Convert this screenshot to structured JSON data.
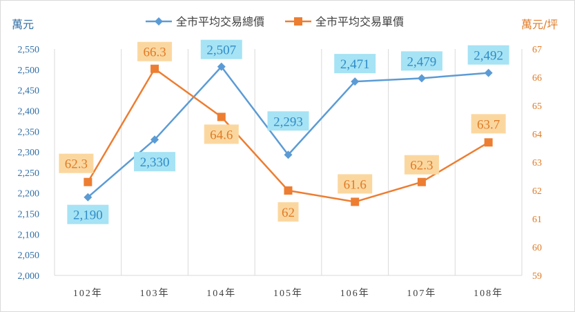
{
  "chart_data": {
    "type": "line",
    "categories": [
      "102年",
      "103年",
      "104年",
      "105年",
      "106年",
      "107年",
      "108年"
    ],
    "series": [
      {
        "name": "全市平均交易總價",
        "axis": "left",
        "color": "#5b9bd5",
        "label_bg": "#a6e3f4",
        "label_color": "#2f8cc9",
        "marker": "diamond",
        "values": [
          2190,
          2330,
          2507,
          2293,
          2471,
          2479,
          2492
        ],
        "labels": [
          "2,190",
          "2,330",
          "2,507",
          "2,293",
          "2,471",
          "2,479",
          "2,492"
        ]
      },
      {
        "name": "全市平均交易單價",
        "axis": "right",
        "color": "#ed7d31",
        "label_bg": "#fbd7a0",
        "label_color": "#e07b25",
        "marker": "square",
        "values": [
          62.3,
          66.3,
          64.6,
          62,
          61.6,
          62.3,
          63.7
        ],
        "labels": [
          "62.3",
          "66.3",
          "64.6",
          "62",
          "61.6",
          "62.3",
          "63.7"
        ]
      }
    ],
    "y_left": {
      "label": "萬元",
      "ylim": [
        2000,
        2550
      ],
      "ticks": [
        "2,000",
        "2,050",
        "2,100",
        "2,150",
        "2,200",
        "2,250",
        "2,300",
        "2,350",
        "2,400",
        "2,450",
        "2,500",
        "2,550"
      ],
      "color": "#2f6ea6"
    },
    "y_right": {
      "label": "萬元/坪",
      "ylim": [
        59,
        67
      ],
      "ticks": [
        "59",
        "60",
        "61",
        "62",
        "63",
        "64",
        "65",
        "66",
        "67"
      ],
      "color": "#e07b25"
    },
    "grid": "vertical",
    "legend_position": "top"
  }
}
